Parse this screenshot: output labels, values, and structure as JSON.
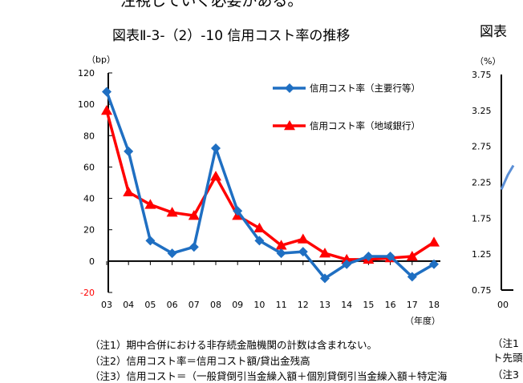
{
  "page": {
    "top_text": "注視していく必要がある。",
    "right_title_fragment": "図表",
    "right_notes": [
      "（注1",
      "ト先頭",
      "（注3"
    ]
  },
  "chart_data": [
    {
      "type": "line",
      "title": "図表Ⅱ-3-（2）-10  信用コスト率の推移",
      "ylabel": "（bp）",
      "xlabel": "（年度）",
      "categories": [
        "03",
        "04",
        "05",
        "06",
        "07",
        "08",
        "09",
        "10",
        "11",
        "12",
        "13",
        "14",
        "15",
        "16",
        "17",
        "18"
      ],
      "ylim": [
        -20,
        120
      ],
      "yticks": [
        -20,
        0,
        20,
        40,
        60,
        80,
        100,
        120
      ],
      "grid": false,
      "legend_position": "top-right",
      "series": [
        {
          "name": "信用コスト率（主要行等）",
          "color": "#1f6fc2",
          "marker": "diamond",
          "values": [
            108,
            70,
            13,
            5,
            9,
            72,
            32,
            13,
            5,
            6,
            -11,
            -2,
            3,
            3,
            -10,
            -2
          ]
        },
        {
          "name": "信用コスト率（地域銀行）",
          "color": "#ff0000",
          "marker": "triangle",
          "values": [
            96,
            44,
            36,
            31,
            29,
            54,
            29,
            21,
            10,
            14,
            5,
            1,
            1,
            2,
            3,
            12
          ]
        }
      ],
      "notes": [
        "（注1）期中合併における非存続金融機関の計数は含まれない。",
        "（注2）信用コスト率＝信用コスト額/貸出金残高",
        "（注3）信用コスト＝（一般貸倒引当金繰入額＋個別貸倒引当金繰入額＋特定海"
      ]
    },
    {
      "type": "line",
      "ylabel": "（%）",
      "yticks": [
        "3.75",
        "3.25",
        "2.75",
        "2.25",
        "1.75",
        "1.25",
        "0.75"
      ],
      "ylim": [
        0.75,
        3.75
      ],
      "categories": [
        "00"
      ],
      "series": [
        {
          "color": "#5b8fd6",
          "values": [
            2.15
          ]
        }
      ]
    }
  ]
}
